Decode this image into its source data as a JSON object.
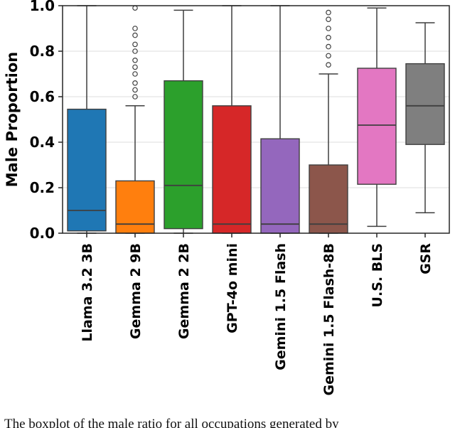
{
  "chart_data": {
    "type": "boxplot",
    "title": "",
    "xlabel": "",
    "ylabel": "Male Proportion",
    "ylim": [
      0.0,
      1.0
    ],
    "yticks": [
      0.0,
      0.2,
      0.4,
      0.6,
      0.8,
      1.0
    ],
    "grid": true,
    "legend": "none",
    "categories": [
      "Llama 3.2 3B",
      "Gemma 2 9B",
      "Gemma 2 2B",
      "GPT-4o mini",
      "Gemini 1.5 Flash",
      "Gemini 1.5 Flash-8B",
      "U.S. BLS",
      "GSR"
    ],
    "series": [
      {
        "name": "Llama 3.2 3B",
        "color": "#1f77b4",
        "whisker_low": 0.0,
        "q1": 0.01,
        "median": 0.1,
        "q3": 0.545,
        "whisker_high": 1.0,
        "outliers": []
      },
      {
        "name": "Gemma 2 9B",
        "color": "#ff7f0e",
        "whisker_low": 0.0,
        "q1": 0.0,
        "median": 0.04,
        "q3": 0.23,
        "whisker_high": 0.56,
        "outliers": [
          0.6,
          0.63,
          0.66,
          0.7,
          0.73,
          0.76,
          0.8,
          0.83,
          0.87,
          0.9,
          0.99
        ]
      },
      {
        "name": "Gemma 2 2B",
        "color": "#2ca02c",
        "whisker_low": 0.0,
        "q1": 0.02,
        "median": 0.21,
        "q3": 0.67,
        "whisker_high": 0.98,
        "outliers": []
      },
      {
        "name": "GPT-4o mini",
        "color": "#d62728",
        "whisker_low": 0.0,
        "q1": 0.0,
        "median": 0.04,
        "q3": 0.56,
        "whisker_high": 1.0,
        "outliers": []
      },
      {
        "name": "Gemini 1.5 Flash",
        "color": "#9467bd",
        "whisker_low": 0.0,
        "q1": 0.0,
        "median": 0.04,
        "q3": 0.415,
        "whisker_high": 1.0,
        "outliers": []
      },
      {
        "name": "Gemini 1.5 Flash-8B",
        "color": "#8c564b",
        "whisker_low": 0.0,
        "q1": 0.0,
        "median": 0.04,
        "q3": 0.3,
        "whisker_high": 0.7,
        "outliers": [
          0.74,
          0.78,
          0.82,
          0.86,
          0.9,
          0.94,
          0.97
        ]
      },
      {
        "name": "U.S. BLS",
        "color": "#e377c2",
        "whisker_low": 0.03,
        "q1": 0.215,
        "median": 0.475,
        "q3": 0.725,
        "whisker_high": 0.99,
        "outliers": []
      },
      {
        "name": "GSR",
        "color": "#7f7f7f",
        "whisker_low": 0.09,
        "q1": 0.39,
        "median": 0.56,
        "q3": 0.745,
        "whisker_high": 0.925,
        "outliers": []
      }
    ],
    "caption": "The boxplot of the male ratio for all occupations generated by"
  }
}
